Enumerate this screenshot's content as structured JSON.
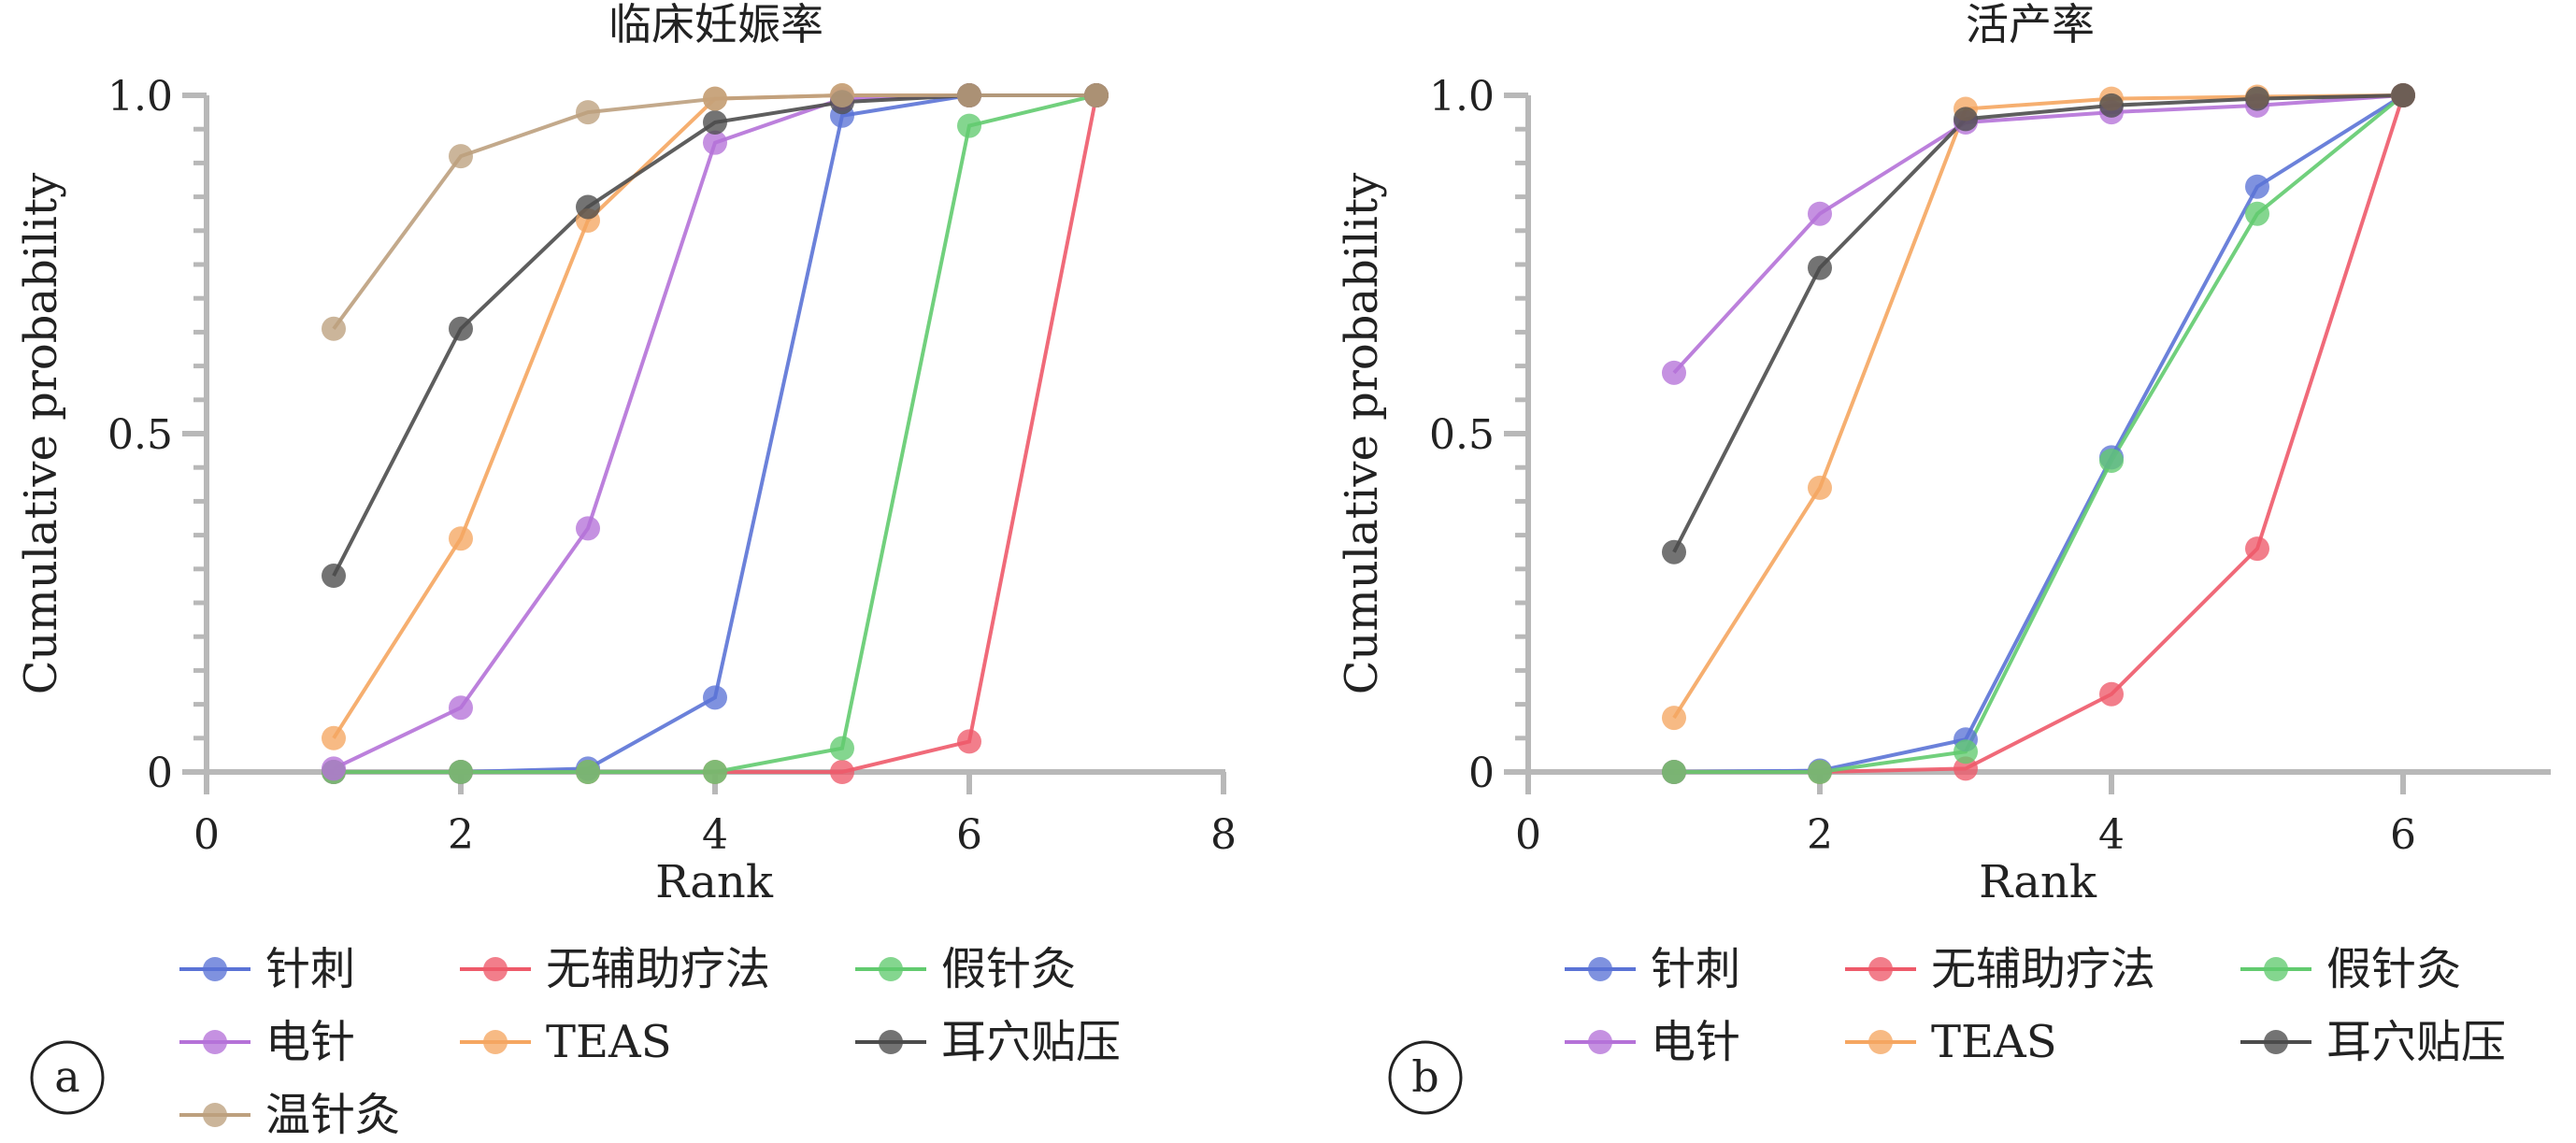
{
  "charts": [
    {
      "panel_label": "a",
      "title": "临床妊娠率",
      "xlabel": "Rank",
      "ylabel": "Cumulative probability",
      "x_ticks": [
        "0",
        "2",
        "4",
        "6",
        "8"
      ],
      "y_ticks": [
        "0",
        "0.5",
        "1.0"
      ]
    },
    {
      "panel_label": "b",
      "title": "活产率",
      "xlabel": "Rank",
      "ylabel": "Cumulative probability",
      "x_ticks": [
        "0",
        "2",
        "4",
        "6"
      ],
      "y_ticks": [
        "0",
        "0.5",
        "1.0"
      ]
    }
  ],
  "chart_data": [
    {
      "type": "line",
      "title": "临床妊娠率",
      "xlabel": "Rank",
      "ylabel": "Cumulative probability",
      "xlim": [
        0,
        8
      ],
      "ylim": [
        0,
        1
      ],
      "grid": false,
      "legend_position": "bottom",
      "series": [
        {
          "name": "针刺",
          "color": "#5b73d6",
          "x": [
            1,
            2,
            3,
            4,
            5,
            6,
            7
          ],
          "values": [
            0.0,
            0.0,
            0.005,
            0.11,
            0.97,
            1.0,
            1.0
          ]
        },
        {
          "name": "无辅助疗法",
          "color": "#ee5a6a",
          "x": [
            1,
            2,
            3,
            4,
            5,
            6,
            7
          ],
          "values": [
            0.0,
            0.0,
            0.0,
            0.0,
            0.0,
            0.045,
            1.0
          ]
        },
        {
          "name": "假针灸",
          "color": "#62cb6f",
          "x": [
            1,
            2,
            3,
            4,
            5,
            6,
            7
          ],
          "values": [
            0.0,
            0.0,
            0.0,
            0.0,
            0.035,
            0.955,
            1.0
          ]
        },
        {
          "name": "电针",
          "color": "#b572d8",
          "x": [
            1,
            2,
            3,
            4,
            5,
            6,
            7
          ],
          "values": [
            0.005,
            0.095,
            0.36,
            0.93,
            0.995,
            1.0,
            1.0
          ]
        },
        {
          "name": "TEAS",
          "color": "#f5a661",
          "x": [
            1,
            2,
            3,
            4,
            5,
            6,
            7
          ],
          "values": [
            0.05,
            0.345,
            0.815,
            0.995,
            1.0,
            1.0,
            1.0
          ]
        },
        {
          "name": "耳穴贴压",
          "color": "#4c4c4c",
          "x": [
            1,
            2,
            3,
            4,
            5,
            6,
            7
          ],
          "values": [
            0.29,
            0.655,
            0.835,
            0.96,
            0.99,
            1.0,
            1.0
          ]
        },
        {
          "name": "温针灸",
          "color": "#bda07e",
          "x": [
            1,
            2,
            3,
            4,
            5,
            6,
            7
          ],
          "values": [
            0.655,
            0.91,
            0.975,
            0.995,
            1.0,
            1.0,
            1.0
          ]
        }
      ]
    },
    {
      "type": "line",
      "title": "活产率",
      "xlabel": "Rank",
      "ylabel": "Cumulative probability",
      "xlim": [
        0,
        7
      ],
      "ylim": [
        0,
        1
      ],
      "grid": false,
      "legend_position": "bottom",
      "series": [
        {
          "name": "针刺",
          "color": "#5b73d6",
          "x": [
            1,
            2,
            3,
            4,
            5,
            6
          ],
          "values": [
            0.0,
            0.002,
            0.048,
            0.465,
            0.865,
            1.0
          ]
        },
        {
          "name": "无辅助疗法",
          "color": "#ee5a6a",
          "x": [
            1,
            2,
            3,
            4,
            5,
            6
          ],
          "values": [
            0.0,
            0.0,
            0.005,
            0.115,
            0.33,
            1.0
          ]
        },
        {
          "name": "假针灸",
          "color": "#62cb6f",
          "x": [
            1,
            2,
            3,
            4,
            5,
            6
          ],
          "values": [
            0.0,
            0.0,
            0.03,
            0.46,
            0.825,
            1.0
          ]
        },
        {
          "name": "电针",
          "color": "#b572d8",
          "x": [
            1,
            2,
            3,
            4,
            5,
            6
          ],
          "values": [
            0.59,
            0.825,
            0.96,
            0.975,
            0.985,
            1.0
          ]
        },
        {
          "name": "TEAS",
          "color": "#f5a661",
          "x": [
            1,
            2,
            3,
            4,
            5,
            6
          ],
          "values": [
            0.08,
            0.42,
            0.98,
            0.995,
            0.998,
            1.0
          ]
        },
        {
          "name": "耳穴贴压",
          "color": "#4c4c4c",
          "x": [
            1,
            2,
            3,
            4,
            5,
            6
          ],
          "values": [
            0.325,
            0.745,
            0.965,
            0.985,
            0.995,
            1.0
          ]
        }
      ]
    }
  ]
}
